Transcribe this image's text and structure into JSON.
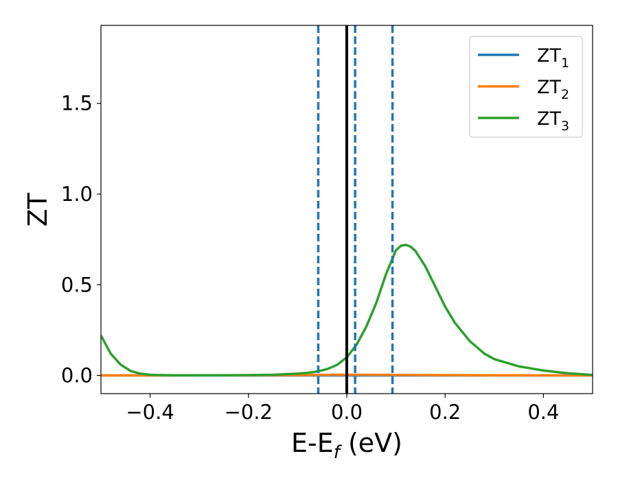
{
  "chart_data": {
    "type": "line",
    "xlabel": "E-E",
    "xlabel_subscript": "f",
    "xlabel_unit": " (eV)",
    "ylabel": "ZT",
    "xlim": [
      -0.5,
      0.5
    ],
    "ylim": [
      -0.1,
      1.93
    ],
    "grid": false,
    "legend_position": "top-right",
    "xticks": [
      {
        "value": -0.4,
        "label": "−0.4"
      },
      {
        "value": -0.2,
        "label": "−0.2"
      },
      {
        "value": 0.0,
        "label": "0.0"
      },
      {
        "value": 0.2,
        "label": "0.2"
      },
      {
        "value": 0.4,
        "label": "0.4"
      }
    ],
    "yticks": [
      {
        "value": 0.0,
        "label": "0.0"
      },
      {
        "value": 0.5,
        "label": "0.5"
      },
      {
        "value": 1.0,
        "label": "1.0"
      },
      {
        "value": 1.5,
        "label": "1.5"
      }
    ],
    "vlines": [
      {
        "x": -0.058,
        "style": "dashed",
        "color": "#1f77b4"
      },
      {
        "x": 0.0,
        "style": "solid",
        "color": "#000000"
      },
      {
        "x": 0.017,
        "style": "dashed",
        "color": "#1f77b4"
      },
      {
        "x": 0.093,
        "style": "dashed",
        "color": "#1f77b4"
      }
    ],
    "series": [
      {
        "name": "ZT",
        "subscript": "1",
        "color": "#1f77b4",
        "x": [
          -0.5,
          -0.3,
          -0.1,
          0.0,
          0.1,
          0.3,
          0.5
        ],
        "y": [
          0.0,
          0.0,
          0.0,
          0.0,
          0.0,
          0.0,
          0.0
        ]
      },
      {
        "name": "ZT",
        "subscript": "2",
        "color": "#ff7f0e",
        "x": [
          -0.5,
          -0.3,
          -0.1,
          -0.02,
          0.0,
          0.02,
          0.1,
          0.2,
          0.3,
          0.5
        ],
        "y": [
          0.0,
          0.001,
          0.002,
          0.004,
          0.004,
          0.004,
          0.003,
          0.002,
          0.001,
          0.0
        ]
      },
      {
        "name": "ZT",
        "subscript": "3",
        "color": "#2ca02c",
        "x": [
          -0.5,
          -0.48,
          -0.46,
          -0.44,
          -0.42,
          -0.4,
          -0.38,
          -0.35,
          -0.3,
          -0.25,
          -0.2,
          -0.15,
          -0.1,
          -0.08,
          -0.06,
          -0.04,
          -0.02,
          0.0,
          0.02,
          0.04,
          0.06,
          0.08,
          0.1,
          0.11,
          0.12,
          0.13,
          0.14,
          0.16,
          0.18,
          0.2,
          0.22,
          0.25,
          0.28,
          0.3,
          0.35,
          0.4,
          0.45,
          0.5
        ],
        "y": [
          0.22,
          0.12,
          0.06,
          0.025,
          0.01,
          0.004,
          0.002,
          0.001,
          0.001,
          0.001,
          0.002,
          0.004,
          0.01,
          0.014,
          0.022,
          0.035,
          0.058,
          0.1,
          0.17,
          0.27,
          0.4,
          0.56,
          0.69,
          0.715,
          0.72,
          0.71,
          0.685,
          0.6,
          0.49,
          0.38,
          0.29,
          0.19,
          0.12,
          0.09,
          0.05,
          0.027,
          0.012,
          0.003
        ]
      }
    ]
  }
}
